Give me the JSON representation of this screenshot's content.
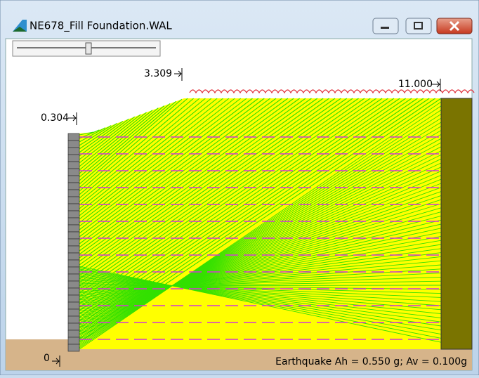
{
  "window": {
    "title": "NE678_Fill Foundation.WAL"
  },
  "dimensions": {
    "crest": "3.309",
    "wall_top": "0.304",
    "length": "11.000",
    "base": "0"
  },
  "status": {
    "earthquake": "Earthquake Ah = 0.550 g; Av = 0.100g"
  }
}
